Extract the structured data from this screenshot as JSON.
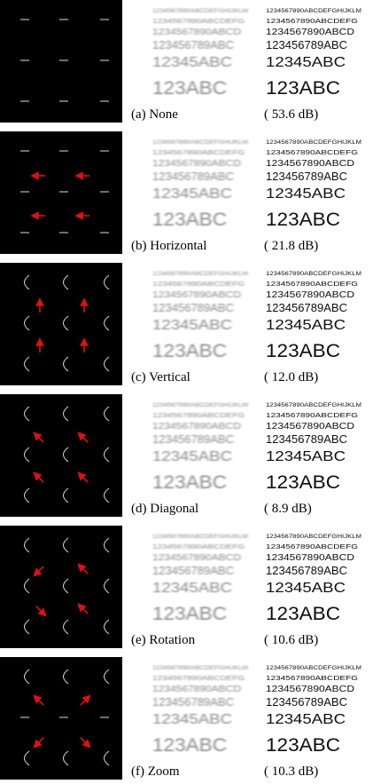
{
  "text_lines": [
    "1234567890ABCDEFGHIJKLM",
    "1234567890ABCDEFG",
    "1234567890ABCD",
    "123456789ABC",
    "12345ABC",
    "123ABC"
  ],
  "rows": [
    {
      "label": "(a) None",
      "psnr": "( 53.6 dB)"
    },
    {
      "label": "(b) Horizontal",
      "psnr": "( 21.8 dB)"
    },
    {
      "label": "(c) Vertical",
      "psnr": "( 12.0 dB)"
    },
    {
      "label": "(d) Diagonal",
      "psnr": "( 8.9 dB)"
    },
    {
      "label": "(e) Rotation",
      "psnr": "( 10.6 dB)"
    },
    {
      "label": "(f) Zoom",
      "psnr": "( 10.3 dB)"
    }
  ]
}
